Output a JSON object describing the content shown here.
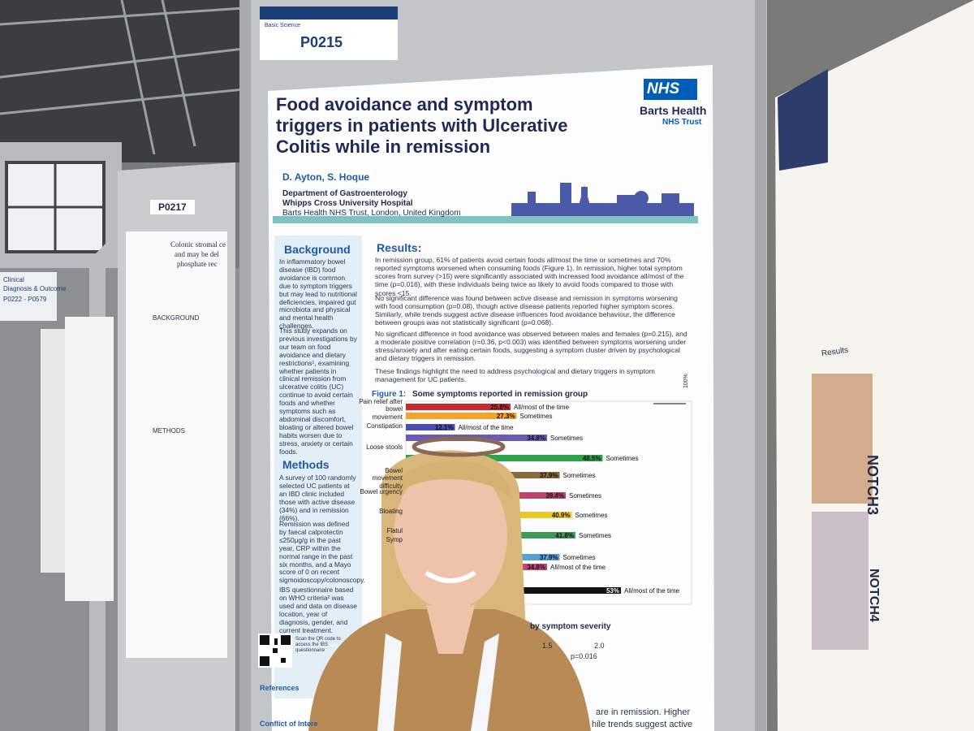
{
  "board": {
    "label_top": "Basic Science",
    "poster_id": "P0215",
    "section_sign_line1": "Clinical",
    "section_sign_line2": "Diagnosis & Outcome",
    "section_sign_line3": "P0222 - P0579"
  },
  "left_poster": {
    "poster_id": "P0217",
    "heading1": "BACKGROUND",
    "heading2": "METHODS",
    "title_line1": "Colonic stromal ce",
    "title_line2": "and may be del",
    "title_line3": "phosphate rec"
  },
  "poster": {
    "title": "Food avoidance and symptom triggers in patients with Ulcerative Colitis while in remission",
    "logo": {
      "mark": "NHS",
      "org": "Barts Health",
      "suborg": "NHS Trust"
    },
    "authors": "D. Ayton, S. Hoque",
    "affiliation1": "Department of Gastroenterology",
    "affiliation2": "Whipps Cross University Hospital",
    "affiliation3": "Barts Health NHS Trust, London, United Kingdom",
    "background": {
      "heading": "Background",
      "p1": "In inflammatory bowel disease (IBD) food avoidance is common due to symptom triggers but may lead to nutritional deficiencies, impaired gut microbiota and physical and mental health challenges.",
      "p2": "This study expands on previous investigations by our team on food avoidance and dietary restrictions¹, examining whether patients in clinical remission from ulcerative colitis (UC) continue to avoid certain foods and whether symptoms such as abdominal discomfort, bloating or altered bowel habits worsen due to stress, anxiety or certain foods."
    },
    "methods": {
      "heading": "Methods",
      "p1": "A survey of 100 randomly selected UC patients at an IBD clinic included those with active disease (34%) and in remission (66%).",
      "p2": "Remission was defined by faecal calprotectin ≤250μg/g in the past year, CRP within the normal range in the past six months, and a Mayo score of 0 on recent sigmoidoscopy/colonoscopy.",
      "p3": "IBS questionnaire based on WHO criteria² was used and data on disease location, year of diagnosis, gender, and current treatment.",
      "qr_note": "Scan the QR code to access the IBS questionnaire"
    },
    "references": "References",
    "conflict": "Conflict of Intere",
    "results": {
      "heading": "Results:",
      "p1": "In remission group, 61% of patients avoid certain foods all/most the time or sometimes and 70% reported symptoms worsened when consuming foods (Figure 1). In remission, higher total symptom scores from survey (>15) were significantly associated with increased food avoidance all/most of the time (p=0.016), with these individuals being twice as likely to avoid foods compared to those with scores <15.",
      "p2": "No significant difference was found between active disease and remission in symptoms worsening with food consumption (p=0.08), though active disease patients reported higher symptom scores. Similarly, while trends suggest active disease influences food avoidance behaviour, the difference between groups was not statistically significant (p=0.068).",
      "p3": "No significant difference in food avoidance was observed between males and females (p=0.215), and a moderate positive correlation (r=0.36, p<0.003) was identified between symptoms worsening under stress/anxiety and after eating certain foods, suggesting a symptom cluster driven by psychological and dietary triggers in remission.",
      "p4": "These findings highlight the need to address psychological and dietary triggers in symptom management for UC patients."
    },
    "figure1": {
      "title_prefix": "Figure 1:",
      "title": "Some symptoms reported in remission group",
      "axis_max_label": "100%",
      "row_labels": [
        "Pain relief after bowel movement",
        "Constipation",
        "Loose stools",
        "Bowel movement difficulty",
        "Bowel urgency",
        "Bloating",
        "Flatul",
        "Symp"
      ],
      "values": [
        25.8,
        27.3,
        12.1,
        34.8,
        48.5,
        37.9,
        39.4,
        40.9,
        41.8,
        37.9,
        34.8,
        53
      ],
      "value_labels": [
        "25.8%",
        "27.3%",
        "12.1%",
        "34.8%",
        "48.5%",
        "37.9%",
        "39.4%",
        "40.9%",
        "41.8%",
        "37.9%",
        "34.8%",
        "53%"
      ],
      "bar_texts": [
        "All/most of the time",
        "Sometimes",
        "All/most of the time",
        "Sometimes",
        "Sometimes",
        "Sometimes",
        "Sometimes",
        "Sometimes",
        "Sometimes",
        "Sometimes",
        "All/most of the time",
        "All/most of the time"
      ],
      "colors": [
        "#c62a2f",
        "#f2a32a",
        "#4a4fb0",
        "#6b5bb5",
        "#2ea24a",
        "#8a6a3a",
        "#b8466a",
        "#e8c92a",
        "#3f9a5a",
        "#5aa0d8",
        "#c0467a",
        "#111111"
      ]
    },
    "figure2": {
      "title": "by symptom severity",
      "tick1": "1.5",
      "tick2": "2.0",
      "pvalue": "p=0.016"
    },
    "tail1": "are in remission. Higher",
    "tail2": "hile trends suggest active"
  },
  "right_poster": {
    "results": "Results",
    "gene1": "NOTCH3",
    "gene2": "NOTCH4"
  }
}
